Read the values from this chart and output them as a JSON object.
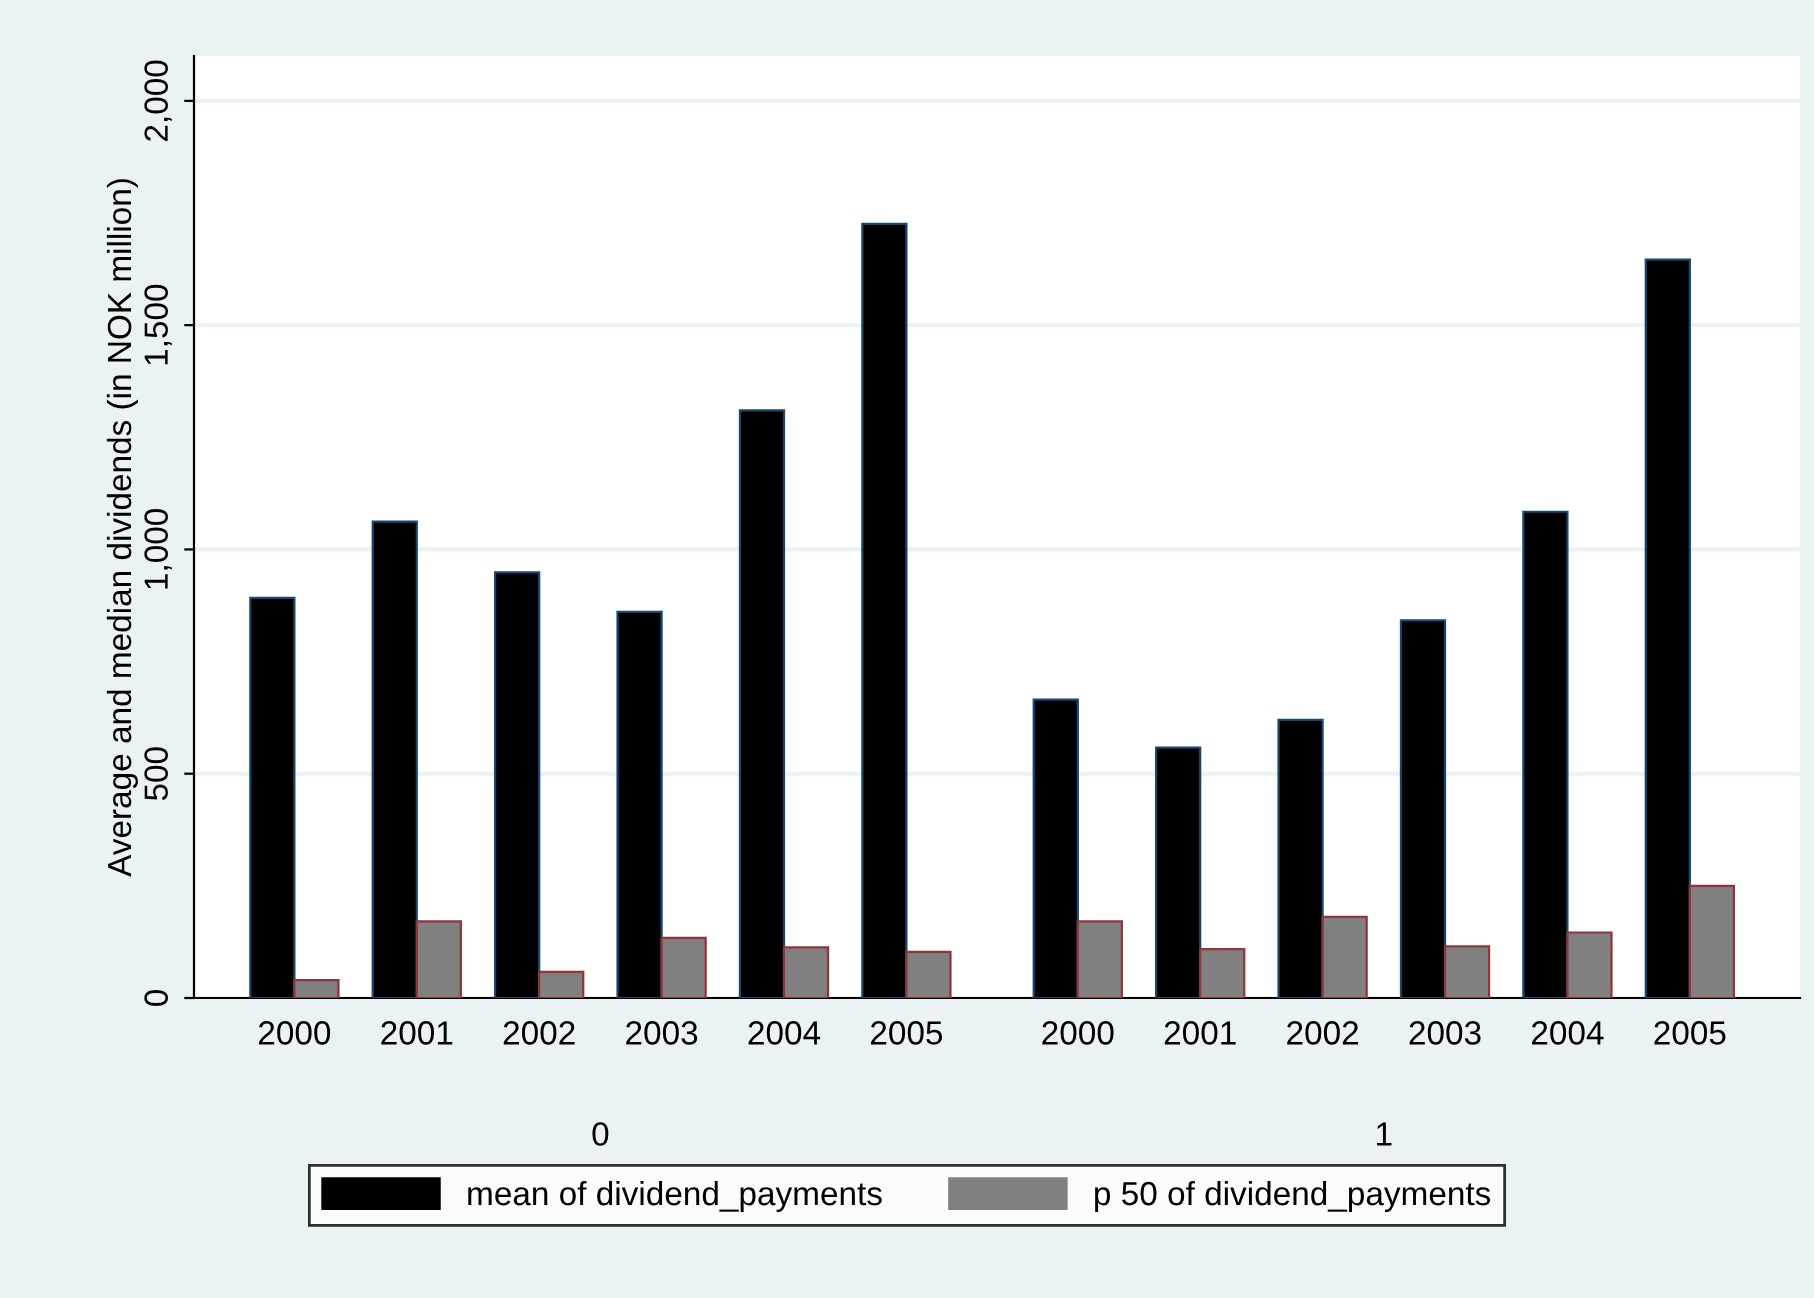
{
  "chart_data": {
    "type": "bar",
    "ylabel": "Average and median dividends (in NOK million)",
    "categories": [
      "2000",
      "2001",
      "2002",
      "2003",
      "2004",
      "2005",
      "2000",
      "2001",
      "2002",
      "2003",
      "2004",
      "2005"
    ],
    "annotations": [
      "0",
      "1"
    ],
    "series": [
      {
        "name": "mean of dividend_payments",
        "color": "#000000",
        "values": [
          892,
          1062,
          949,
          861,
          1310,
          1726,
          665,
          558,
          620,
          842,
          1084,
          1646
        ]
      },
      {
        "name": "p 50 of dividend_payments",
        "color": "#808080",
        "values": [
          40,
          171,
          58,
          134,
          113,
          103,
          171,
          109,
          181,
          115,
          146,
          250
        ]
      }
    ],
    "ylim": [
      0,
      2100
    ],
    "yticks": [
      0,
      500,
      {
        "value": 1000,
        "label": "1,000"
      },
      {
        "value": 1500,
        "label": "1,500"
      },
      {
        "value": 2000,
        "label": "2,000"
      }
    ],
    "grid": "y",
    "legend": "bottom"
  }
}
